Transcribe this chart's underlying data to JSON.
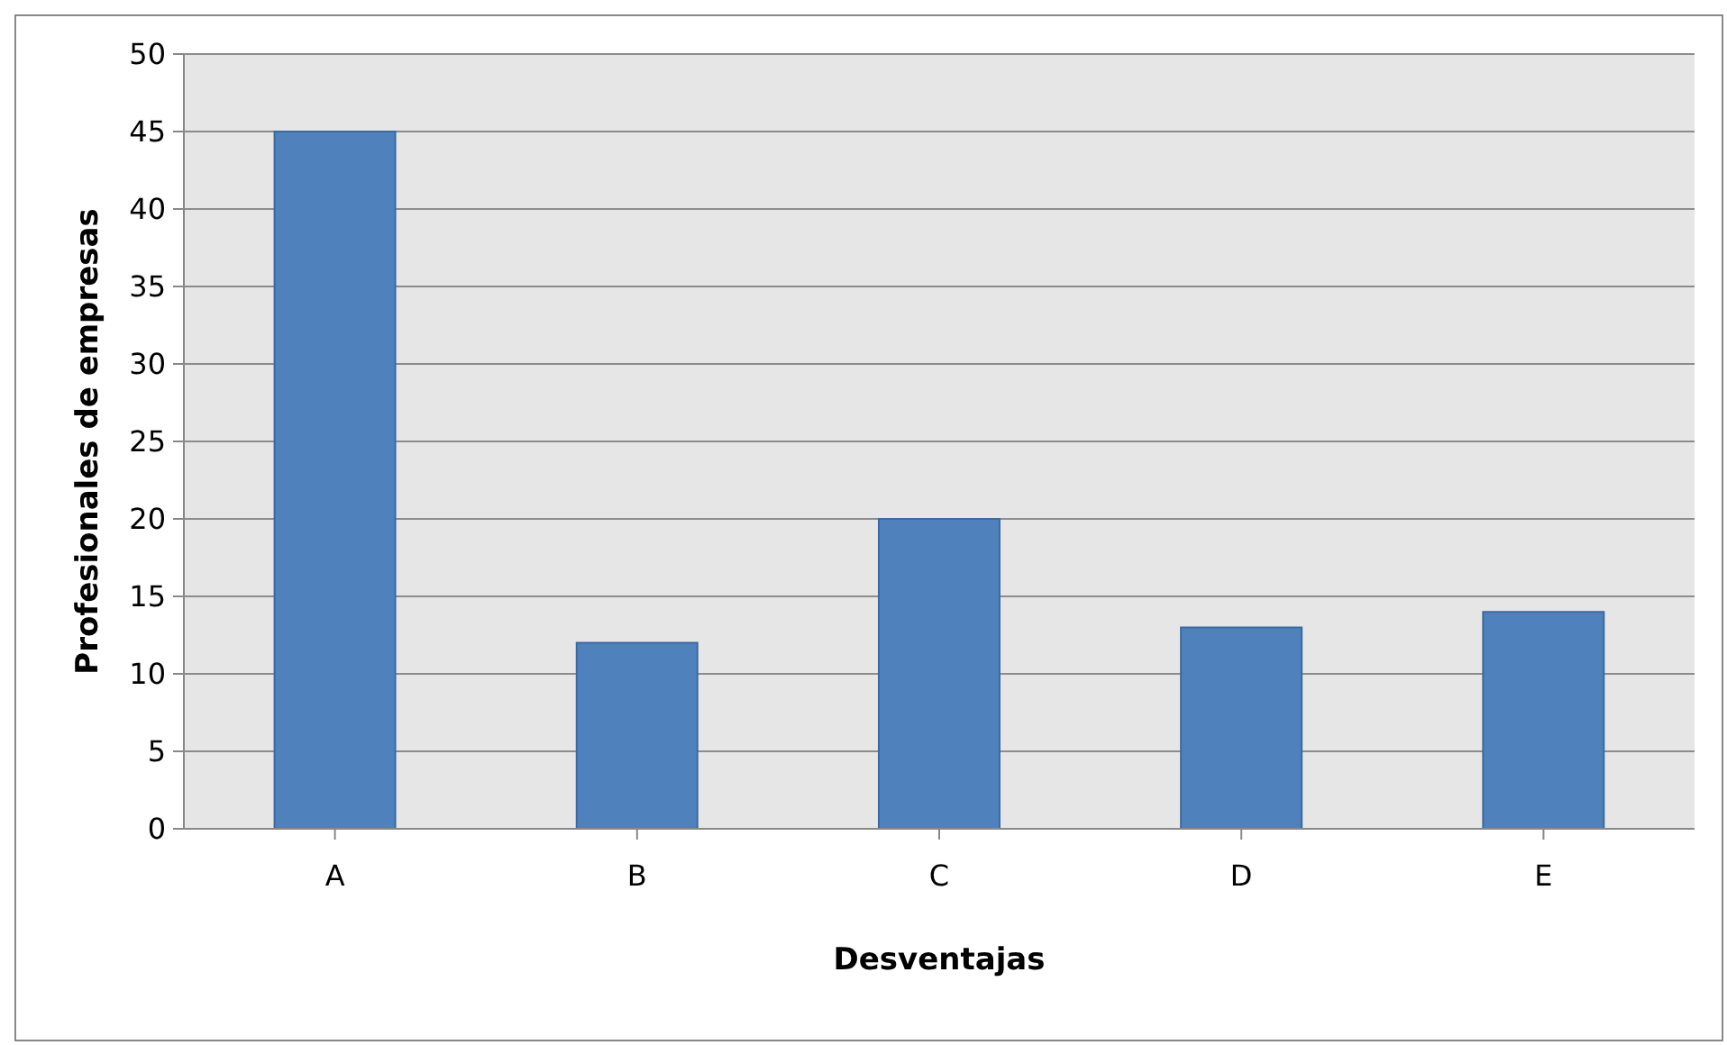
{
  "chart_data": {
    "type": "bar",
    "xlabel": "Desventajas",
    "ylabel": "Profesionales de empresas",
    "categories": [
      "A",
      "B",
      "C",
      "D",
      "E"
    ],
    "values": [
      45,
      12,
      20,
      13,
      14
    ],
    "color": "#4f81bd",
    "ylim": [
      0,
      50
    ],
    "yticks": [
      0,
      5,
      10,
      15,
      20,
      25,
      30,
      35,
      40,
      45,
      50
    ],
    "grid": "y",
    "legend": false
  }
}
